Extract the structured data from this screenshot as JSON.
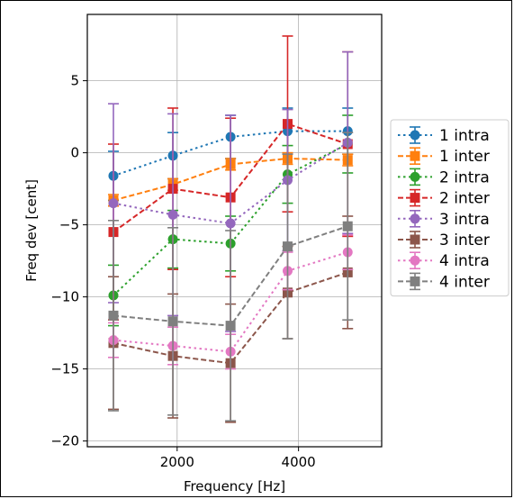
{
  "chart_data": {
    "type": "line",
    "title": "",
    "xlabel": "Frequency [Hz]",
    "ylabel": "Freq dev [cent]",
    "xlim": [
      520,
      5370
    ],
    "ylim": [
      -20.4,
      9.6
    ],
    "xticks": [
      2000,
      4000
    ],
    "yticks": [
      5,
      0,
      -5,
      -10,
      -15,
      -20
    ],
    "xtick_labels": [
      "2000",
      "4000"
    ],
    "ytick_labels": [
      "5",
      "0",
      "−5",
      "−10",
      "−15",
      "−20"
    ],
    "grid": true,
    "legend_position": "right",
    "x": [
      950,
      1930,
      2880,
      3820,
      4810
    ],
    "series": [
      {
        "name": "1 intra",
        "color": "#1f77b4",
        "linestyle": "dotted",
        "marker": "circle",
        "values": [
          -1.6,
          -0.2,
          1.1,
          1.5,
          1.5
        ],
        "errors": [
          1.7,
          1.6,
          1.5,
          1.6,
          1.6
        ]
      },
      {
        "name": "1 inter",
        "color": "#ff7f0e",
        "linestyle": "dashed",
        "marker": "square",
        "values": [
          -3.3,
          -2.2,
          -0.8,
          -0.4,
          -0.5
        ],
        "errors": [
          0.4,
          0.4,
          0.4,
          0.4,
          0.4
        ]
      },
      {
        "name": "2 intra",
        "color": "#2ca02c",
        "linestyle": "dotted",
        "marker": "circle",
        "values": [
          -9.9,
          -6.0,
          -6.3,
          -1.5,
          0.6
        ],
        "errors": [
          2.1,
          2.0,
          1.9,
          2.0,
          2.0
        ]
      },
      {
        "name": "2 inter",
        "color": "#d62728",
        "linestyle": "dashed",
        "marker": "square",
        "values": [
          -5.5,
          -2.5,
          -3.1,
          2.0,
          0.6
        ],
        "errors": [
          6.1,
          5.6,
          5.5,
          6.1,
          6.4
        ]
      },
      {
        "name": "3 intra",
        "color": "#9467bd",
        "linestyle": "dotted",
        "marker": "circle",
        "values": [
          -3.5,
          -4.3,
          -4.9,
          -1.9,
          0.7
        ],
        "errors": [
          6.9,
          7.0,
          7.5,
          4.9,
          6.3
        ]
      },
      {
        "name": "3 inter",
        "color": "#8c564b",
        "linestyle": "dashed",
        "marker": "square",
        "values": [
          -13.2,
          -14.1,
          -14.6,
          -9.7,
          -8.3
        ],
        "errors": [
          4.6,
          4.3,
          4.1,
          3.2,
          3.9
        ]
      },
      {
        "name": "4 intra",
        "color": "#e377c2",
        "linestyle": "dotted",
        "marker": "circle",
        "values": [
          -13.0,
          -13.4,
          -13.8,
          -8.2,
          -6.9
        ],
        "errors": [
          1.2,
          1.3,
          1.2,
          1.3,
          1.2
        ]
      },
      {
        "name": "4 inter",
        "color": "#7f7f7f",
        "linestyle": "dashed",
        "marker": "square",
        "values": [
          -11.3,
          -11.7,
          -12.0,
          -6.5,
          -5.1
        ],
        "errors": [
          6.6,
          6.5,
          6.6,
          6.4,
          6.5
        ]
      }
    ]
  }
}
